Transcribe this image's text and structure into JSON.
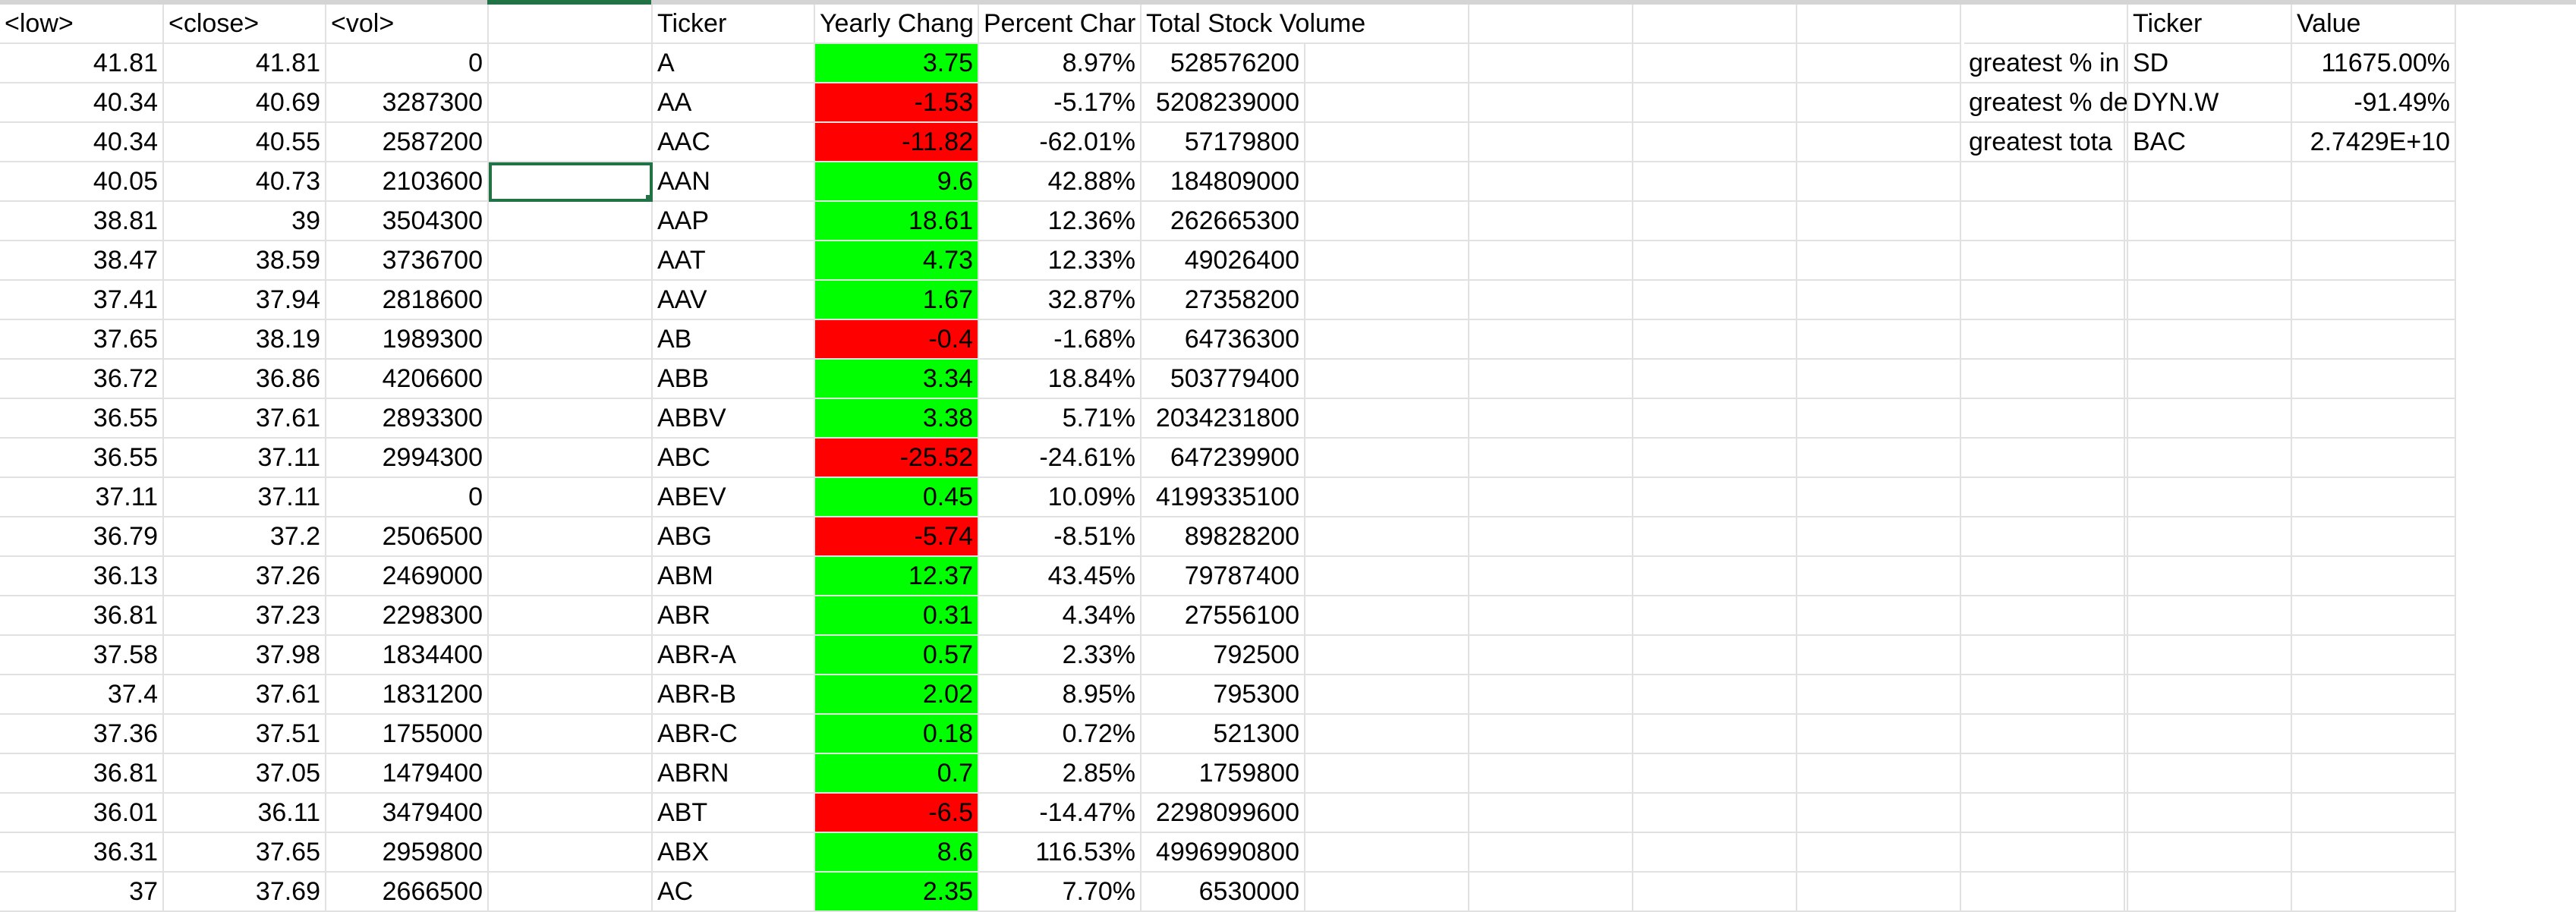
{
  "sheet": {
    "headers": {
      "low": "<low>",
      "close": "<close>",
      "vol": "<vol>",
      "ticker": "Ticker",
      "yearly_change": "Yearly Chang",
      "percent_change": "Percent Char",
      "total_stock_volume": "Total Stock Volume",
      "summary_ticker": "Ticker",
      "summary_value": "Value"
    },
    "rows": [
      {
        "low": "41.81",
        "close": "41.81",
        "vol": "0",
        "ticker": "A",
        "yearly_change": "3.75",
        "percent_change": "8.97%",
        "total_volume": "528576200",
        "change_sign": "positive"
      },
      {
        "low": "40.34",
        "close": "40.69",
        "vol": "3287300",
        "ticker": "AA",
        "yearly_change": "-1.53",
        "percent_change": "-5.17%",
        "total_volume": "5208239000",
        "change_sign": "negative"
      },
      {
        "low": "40.34",
        "close": "40.55",
        "vol": "2587200",
        "ticker": "AAC",
        "yearly_change": "-11.82",
        "percent_change": "-62.01%",
        "total_volume": "57179800",
        "change_sign": "negative"
      },
      {
        "low": "40.05",
        "close": "40.73",
        "vol": "2103600",
        "ticker": "AAN",
        "yearly_change": "9.6",
        "percent_change": "42.88%",
        "total_volume": "184809000",
        "change_sign": "positive"
      },
      {
        "low": "38.81",
        "close": "39",
        "vol": "3504300",
        "ticker": "AAP",
        "yearly_change": "18.61",
        "percent_change": "12.36%",
        "total_volume": "262665300",
        "change_sign": "positive"
      },
      {
        "low": "38.47",
        "close": "38.59",
        "vol": "3736700",
        "ticker": "AAT",
        "yearly_change": "4.73",
        "percent_change": "12.33%",
        "total_volume": "49026400",
        "change_sign": "positive"
      },
      {
        "low": "37.41",
        "close": "37.94",
        "vol": "2818600",
        "ticker": "AAV",
        "yearly_change": "1.67",
        "percent_change": "32.87%",
        "total_volume": "27358200",
        "change_sign": "positive"
      },
      {
        "low": "37.65",
        "close": "38.19",
        "vol": "1989300",
        "ticker": "AB",
        "yearly_change": "-0.4",
        "percent_change": "-1.68%",
        "total_volume": "64736300",
        "change_sign": "negative"
      },
      {
        "low": "36.72",
        "close": "36.86",
        "vol": "4206600",
        "ticker": "ABB",
        "yearly_change": "3.34",
        "percent_change": "18.84%",
        "total_volume": "503779400",
        "change_sign": "positive"
      },
      {
        "low": "36.55",
        "close": "37.61",
        "vol": "2893300",
        "ticker": "ABBV",
        "yearly_change": "3.38",
        "percent_change": "5.71%",
        "total_volume": "2034231800",
        "change_sign": "positive"
      },
      {
        "low": "36.55",
        "close": "37.11",
        "vol": "2994300",
        "ticker": "ABC",
        "yearly_change": "-25.52",
        "percent_change": "-24.61%",
        "total_volume": "647239900",
        "change_sign": "negative"
      },
      {
        "low": "37.11",
        "close": "37.11",
        "vol": "0",
        "ticker": "ABEV",
        "yearly_change": "0.45",
        "percent_change": "10.09%",
        "total_volume": "4199335100",
        "change_sign": "positive"
      },
      {
        "low": "36.79",
        "close": "37.2",
        "vol": "2506500",
        "ticker": "ABG",
        "yearly_change": "-5.74",
        "percent_change": "-8.51%",
        "total_volume": "89828200",
        "change_sign": "negative"
      },
      {
        "low": "36.13",
        "close": "37.26",
        "vol": "2469000",
        "ticker": "ABM",
        "yearly_change": "12.37",
        "percent_change": "43.45%",
        "total_volume": "79787400",
        "change_sign": "positive"
      },
      {
        "low": "36.81",
        "close": "37.23",
        "vol": "2298300",
        "ticker": "ABR",
        "yearly_change": "0.31",
        "percent_change": "4.34%",
        "total_volume": "27556100",
        "change_sign": "positive"
      },
      {
        "low": "37.58",
        "close": "37.98",
        "vol": "1834400",
        "ticker": "ABR-A",
        "yearly_change": "0.57",
        "percent_change": "2.33%",
        "total_volume": "792500",
        "change_sign": "positive"
      },
      {
        "low": "37.4",
        "close": "37.61",
        "vol": "1831200",
        "ticker": "ABR-B",
        "yearly_change": "2.02",
        "percent_change": "8.95%",
        "total_volume": "795300",
        "change_sign": "positive"
      },
      {
        "low": "37.36",
        "close": "37.51",
        "vol": "1755000",
        "ticker": "ABR-C",
        "yearly_change": "0.18",
        "percent_change": "0.72%",
        "total_volume": "521300",
        "change_sign": "positive"
      },
      {
        "low": "36.81",
        "close": "37.05",
        "vol": "1479400",
        "ticker": "ABRN",
        "yearly_change": "0.7",
        "percent_change": "2.85%",
        "total_volume": "1759800",
        "change_sign": "positive"
      },
      {
        "low": "36.01",
        "close": "36.11",
        "vol": "3479400",
        "ticker": "ABT",
        "yearly_change": "-6.5",
        "percent_change": "-14.47%",
        "total_volume": "2298099600",
        "change_sign": "negative"
      },
      {
        "low": "36.31",
        "close": "37.65",
        "vol": "2959800",
        "ticker": "ABX",
        "yearly_change": "8.6",
        "percent_change": "116.53%",
        "total_volume": "4996990800",
        "change_sign": "positive"
      },
      {
        "low": "37",
        "close": "37.69",
        "vol": "2666500",
        "ticker": "AC",
        "yearly_change": "2.35",
        "percent_change": "7.70%",
        "total_volume": "6530000",
        "change_sign": "positive"
      }
    ],
    "summary": [
      {
        "label": "greatest % in",
        "ticker": "SD",
        "value": "11675.00%"
      },
      {
        "label": "greatest % de",
        "ticker": "DYN.W",
        "value": "-91.49%"
      },
      {
        "label": "greatest tota",
        "ticker": "BAC",
        "value": "2.7429E+10"
      }
    ],
    "colors": {
      "positive_fill": "#00ff00",
      "negative_fill": "#ff0000",
      "selection": "#217346",
      "gridline": "#e1e1e1"
    }
  }
}
